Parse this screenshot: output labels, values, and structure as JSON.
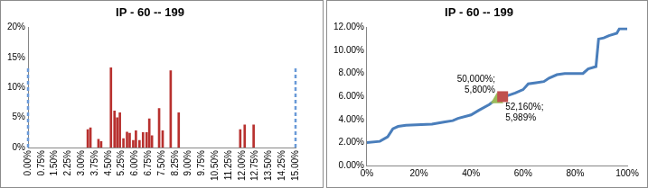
{
  "chart_data": [
    {
      "type": "bar",
      "title": "IP - 60 -- 199",
      "xlim": [
        0,
        15
      ],
      "xticks": [
        {
          "value": 0,
          "label": "0.00%"
        },
        {
          "value": 0.75,
          "label": "0.75%"
        },
        {
          "value": 1.5,
          "label": "1.50%"
        },
        {
          "value": 2.25,
          "label": "2.25%"
        },
        {
          "value": 3,
          "label": "3.00%"
        },
        {
          "value": 3.75,
          "label": "3.75%"
        },
        {
          "value": 4.5,
          "label": "4.50%"
        },
        {
          "value": 5.25,
          "label": "5.25%"
        },
        {
          "value": 6,
          "label": "6.00%"
        },
        {
          "value": 6.75,
          "label": "6.75%"
        },
        {
          "value": 7.5,
          "label": "7.50%"
        },
        {
          "value": 8.25,
          "label": "8.25%"
        },
        {
          "value": 9,
          "label": "9.00%"
        },
        {
          "value": 9.75,
          "label": "9.75%"
        },
        {
          "value": 10.5,
          "label": "10.50%"
        },
        {
          "value": 11.25,
          "label": "11.25%"
        },
        {
          "value": 12,
          "label": "12.00%"
        },
        {
          "value": 12.75,
          "label": "12.75%"
        },
        {
          "value": 13.5,
          "label": "13.50%"
        },
        {
          "value": 14.25,
          "label": "14.25%"
        },
        {
          "value": 15,
          "label": "15.00%"
        }
      ],
      "ylim": [
        0,
        20
      ],
      "yticks": [
        {
          "value": 0,
          "label": "0%"
        },
        {
          "value": 5,
          "label": "5%"
        },
        {
          "value": 10,
          "label": "10%"
        },
        {
          "value": 15,
          "label": "15%"
        },
        {
          "value": 20,
          "label": "20%"
        }
      ],
      "grid": false,
      "series": [
        {
          "type": "bar",
          "color": "#b8312f",
          "x": [
            3.35,
            3.5,
            3.95,
            4.1,
            4.65,
            4.85,
            5.0,
            5.15,
            5.35,
            5.55,
            5.7,
            5.9,
            6.05,
            6.25,
            6.45,
            6.65,
            6.8,
            6.95,
            7.35,
            7.55,
            8.0,
            8.45,
            11.9,
            12.15,
            12.65
          ],
          "values": [
            3.0,
            3.3,
            1.4,
            1.0,
            13.3,
            6.1,
            5.0,
            5.8,
            1.5,
            2.6,
            2.4,
            1.2,
            2.8,
            1.2,
            2.5,
            2.5,
            4.8,
            2.0,
            6.5,
            2.8,
            12.8,
            5.8,
            3.0,
            3.8,
            3.8
          ]
        },
        {
          "type": "vline",
          "color": "#6a9ad8",
          "line_style": "dashed",
          "x": [
            0,
            15
          ],
          "values": [
            13.5,
            13.5
          ]
        }
      ]
    },
    {
      "type": "line",
      "title": "IP - 60 -- 199",
      "xlim": [
        0,
        100
      ],
      "xticks": [
        {
          "value": 0,
          "label": "0%"
        },
        {
          "value": 20,
          "label": "20%"
        },
        {
          "value": 40,
          "label": "40%"
        },
        {
          "value": 60,
          "label": "60%"
        },
        {
          "value": 80,
          "label": "80%"
        },
        {
          "value": 100,
          "label": "100%"
        }
      ],
      "ylim": [
        0,
        12
      ],
      "yticks": [
        {
          "value": 0,
          "label": "0.00%"
        },
        {
          "value": 2,
          "label": "2.00%"
        },
        {
          "value": 4,
          "label": "4.00%"
        },
        {
          "value": 6,
          "label": "6.00%"
        },
        {
          "value": 8,
          "label": "8.00%"
        },
        {
          "value": 10,
          "label": "10.00%"
        },
        {
          "value": 12,
          "label": "12.00%"
        }
      ],
      "grid": false,
      "color": "#4a7ebb",
      "x": [
        0,
        5,
        8,
        10,
        12,
        15,
        25,
        30,
        33,
        35,
        40,
        43,
        47,
        50,
        53,
        57,
        60,
        62,
        65,
        68,
        70,
        73,
        76,
        83,
        85,
        88,
        89,
        91,
        93,
        96,
        97,
        100
      ],
      "values": [
        2.0,
        2.1,
        2.5,
        3.2,
        3.4,
        3.5,
        3.6,
        3.8,
        3.9,
        4.1,
        4.4,
        4.8,
        5.3,
        5.8,
        6.0,
        6.3,
        6.6,
        7.1,
        7.2,
        7.3,
        7.6,
        7.9,
        8.0,
        8.0,
        8.4,
        8.6,
        11.0,
        11.1,
        11.3,
        11.5,
        11.9,
        11.9
      ],
      "annotations": [
        {
          "x": 50,
          "y": 5.8,
          "label": "50,000%; 5,800%",
          "marker": "triangle",
          "color": "#9bbb59"
        },
        {
          "x": 52.16,
          "y": 5.989,
          "label": "52,160%; 5,989%",
          "marker": "square",
          "color": "#c0504d"
        }
      ]
    }
  ]
}
